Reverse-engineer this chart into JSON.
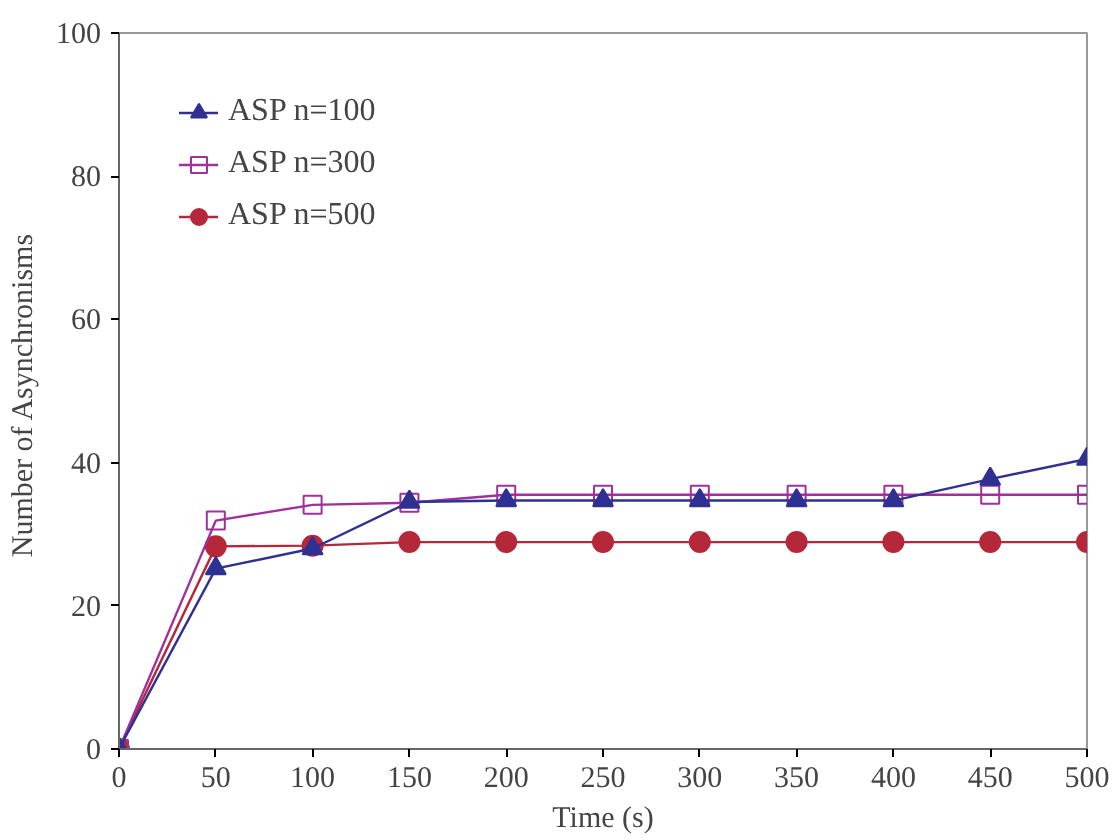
{
  "chart_data": {
    "type": "line",
    "xlabel": "Time (s)",
    "ylabel": "Number  of Asynchronisms",
    "x": [
      0,
      50,
      100,
      150,
      200,
      250,
      300,
      350,
      400,
      450,
      500
    ],
    "xlim": [
      0,
      500
    ],
    "xticks": [
      0,
      50,
      100,
      150,
      200,
      250,
      300,
      350,
      400,
      450,
      500
    ],
    "ylim": [
      0,
      100
    ],
    "yticks": [
      0,
      20,
      40,
      60,
      80,
      100
    ],
    "grid": false,
    "legend": "top left",
    "series": [
      {
        "name": "ASP n=100",
        "color": "#2e3192",
        "marker": "triangle",
        "values": [
          0,
          25.2,
          28,
          34.5,
          34.7,
          34.7,
          34.7,
          34.7,
          34.7,
          37.7,
          40.5
        ]
      },
      {
        "name": "ASP n=300",
        "color": "#a0309a",
        "marker": "square",
        "values": [
          0,
          31.9,
          34.1,
          34.4,
          35.5,
          35.5,
          35.5,
          35.5,
          35.5,
          35.5,
          35.5
        ]
      },
      {
        "name": "ASP n=500",
        "color": "#b5283a",
        "marker": "circle",
        "values": [
          0,
          28.3,
          28.4,
          28.9,
          28.9,
          28.9,
          28.9,
          28.9,
          28.9,
          28.9,
          28.9
        ]
      }
    ]
  }
}
